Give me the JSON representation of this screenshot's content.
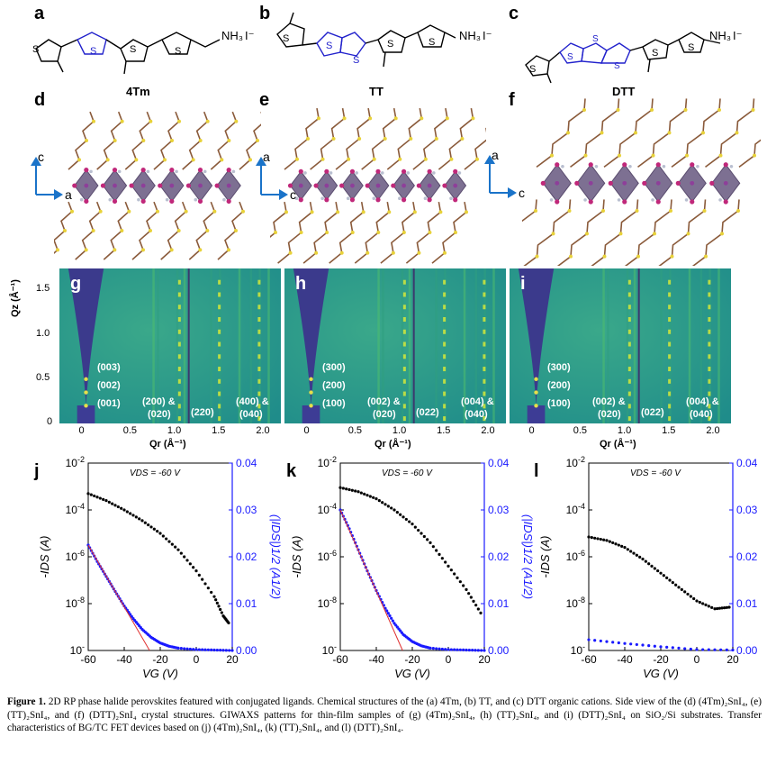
{
  "panel_letters": {
    "a": "a",
    "b": "b",
    "c": "c",
    "d": "d",
    "e": "e",
    "f": "f",
    "g": "g",
    "h": "h",
    "i": "i",
    "j": "j",
    "k": "k",
    "l": "l"
  },
  "structures": {
    "a": {
      "name": "4Tm",
      "ammonium": "NH₃",
      "iodide": "I⁻"
    },
    "b": {
      "name": "TT",
      "ammonium": "NH₃",
      "iodide": "I⁻"
    },
    "c": {
      "name": "DTT",
      "ammonium": "NH₃",
      "iodide": "I⁻"
    }
  },
  "crystal_axes": {
    "d": {
      "vertical": "c",
      "horizontal": "a"
    },
    "e": {
      "vertical": "a",
      "horizontal": "c"
    },
    "f": {
      "vertical": "a",
      "horizontal": "c"
    }
  },
  "giwaxs": {
    "y_label": "Qz (Å⁻¹)",
    "x_label": "Qr (Å⁻¹)",
    "y_ticks": [
      "1.5",
      "1.0",
      "0.5",
      "0"
    ],
    "x_ticks": [
      "0",
      "0.5",
      "1.0",
      "1.5",
      "2.0"
    ],
    "colors": {
      "background": "#1f8c8a",
      "shadow": "#3b3a8c",
      "bright": "#d4e83a"
    },
    "panels": [
      {
        "letter": "g",
        "low_q": [
          "(003)",
          "(002)",
          "(001)"
        ],
        "peak_a": "(200) &",
        "peak_a2": "(020)",
        "peak_b": "(220)",
        "peak_c": "(400) &",
        "peak_c2": "(040)"
      },
      {
        "letter": "h",
        "low_q": [
          "(300)",
          "(200)",
          "(100)"
        ],
        "peak_a": "(002) &",
        "peak_a2": "(020)",
        "peak_b": "(022)",
        "peak_c": "(004) &",
        "peak_c2": "(040)"
      },
      {
        "letter": "i",
        "low_q": [
          "(300)",
          "(200)",
          "(100)"
        ],
        "peak_a": "(002) &",
        "peak_a2": "(020)",
        "peak_b": "(022)",
        "peak_c": "(004) &",
        "peak_c2": "(040)"
      }
    ]
  },
  "fet": {
    "vds_label": "VDS = -60 V",
    "left_axis_label": "-IDS (A)",
    "right_axis_label": "(|IDS|)1/2 (A1/2)",
    "x_axis_label": "VG (V)",
    "left_ticks": [
      "10-2",
      "10-4",
      "10-6",
      "10-8",
      "10-10"
    ],
    "right_ticks": [
      "0.04",
      "0.03",
      "0.02",
      "0.01",
      "0.00"
    ],
    "x_ticks": [
      "-60",
      "-40",
      "-20",
      "0",
      "20"
    ],
    "colors": {
      "log_curve": "#000000",
      "sqrt_curve": "#1a1aff",
      "fit": "#e03030",
      "right_axis": "#1a1aff"
    }
  },
  "chart_data": [
    {
      "type": "scatter",
      "panel": "j",
      "title": "",
      "xlabel": "VG (V)",
      "ylabel": "-IDS (A)",
      "y2label": "(|IDS|)1/2 (A1/2)",
      "xlim": [
        -60,
        20
      ],
      "ylim_log": [
        -10,
        -2
      ],
      "y2lim": [
        0,
        0.04
      ],
      "series": [
        {
          "axis": "left-log",
          "x": [
            -60,
            -50,
            -40,
            -30,
            -20,
            -10,
            0,
            10,
            15,
            18
          ],
          "y": [
            0.0005,
            0.00025,
            0.0001,
            3.5e-05,
            1e-05,
            2e-06,
            2.5e-07,
            2e-08,
            3e-09,
            1.5e-09
          ]
        },
        {
          "axis": "right-linear",
          "x": [
            -60,
            -55,
            -50,
            -45,
            -40,
            -35,
            -30,
            -25,
            -20,
            -15,
            -10,
            0,
            10,
            20
          ],
          "y": [
            0.0225,
            0.019,
            0.0158,
            0.0126,
            0.0095,
            0.0068,
            0.0045,
            0.0028,
            0.0016,
            0.0009,
            0.0005,
            0.0002,
            0.0001,
            0.0
          ]
        }
      ]
    },
    {
      "type": "scatter",
      "panel": "k",
      "title": "",
      "xlabel": "VG (V)",
      "ylabel": "-IDS (A)",
      "y2label": "(|IDS|)1/2 (A1/2)",
      "xlim": [
        -60,
        20
      ],
      "ylim_log": [
        -10,
        -2
      ],
      "y2lim": [
        0,
        0.04
      ],
      "series": [
        {
          "axis": "left-log",
          "x": [
            -60,
            -50,
            -40,
            -30,
            -20,
            -10,
            0,
            10,
            18
          ],
          "y": [
            0.0009,
            0.0006,
            0.0003,
            0.0001,
            2.5e-05,
            4e-06,
            4e-07,
            4e-08,
            4e-09
          ]
        },
        {
          "axis": "right-linear",
          "x": [
            -60,
            -55,
            -50,
            -45,
            -40,
            -35,
            -30,
            -25,
            -20,
            -15,
            -10,
            0,
            10,
            20
          ],
          "y": [
            0.03,
            0.026,
            0.0215,
            0.017,
            0.0128,
            0.009,
            0.0058,
            0.0034,
            0.0019,
            0.001,
            0.0005,
            0.0002,
            0.0001,
            0.0
          ]
        }
      ]
    },
    {
      "type": "scatter",
      "panel": "l",
      "title": "",
      "xlabel": "VG (V)",
      "ylabel": "-IDS (A)",
      "y2label": "(|IDS|)1/2 (A1/2)",
      "xlim": [
        -60,
        20
      ],
      "ylim_log": [
        -10,
        -2
      ],
      "y2lim": [
        0,
        0.04
      ],
      "series": [
        {
          "axis": "left-log",
          "x": [
            -60,
            -50,
            -40,
            -30,
            -20,
            -10,
            0,
            10,
            18
          ],
          "y": [
            7e-06,
            5e-06,
            2.5e-06,
            8e-07,
            2e-07,
            5e-08,
            1.3e-08,
            6e-09,
            7e-09
          ]
        },
        {
          "axis": "right-linear",
          "x": [
            -60,
            -40,
            -20,
            0,
            20
          ],
          "y": [
            0.0023,
            0.0015,
            0.0008,
            0.0002,
            0.0001
          ]
        }
      ]
    }
  ],
  "caption": {
    "label": "Figure 1.",
    "text": "2D RP phase halide perovskites featured with conjugated ligands. Chemical structures of the (a) 4Tm, (b) TT, and (c) DTT organic cations. Side view of the (d) (4Tm)₂SnI₄, (e) (TT)₂SnI₄, and (f) (DTT)₂SnI₄ crystal structures. GIWAXS patterns for thin-film samples of (g) (4Tm)₂SnI₄, (h) (TT)₂SnI₄, and (i) (DTT)₂SnI₄ on SiO₂/Si substrates. Transfer characteristics of BG/TC FET devices based on (j) (4Tm)₂SnI₄, (k) (TT)₂SnI₄, and (l) (DTT)₂SnI₄."
  }
}
